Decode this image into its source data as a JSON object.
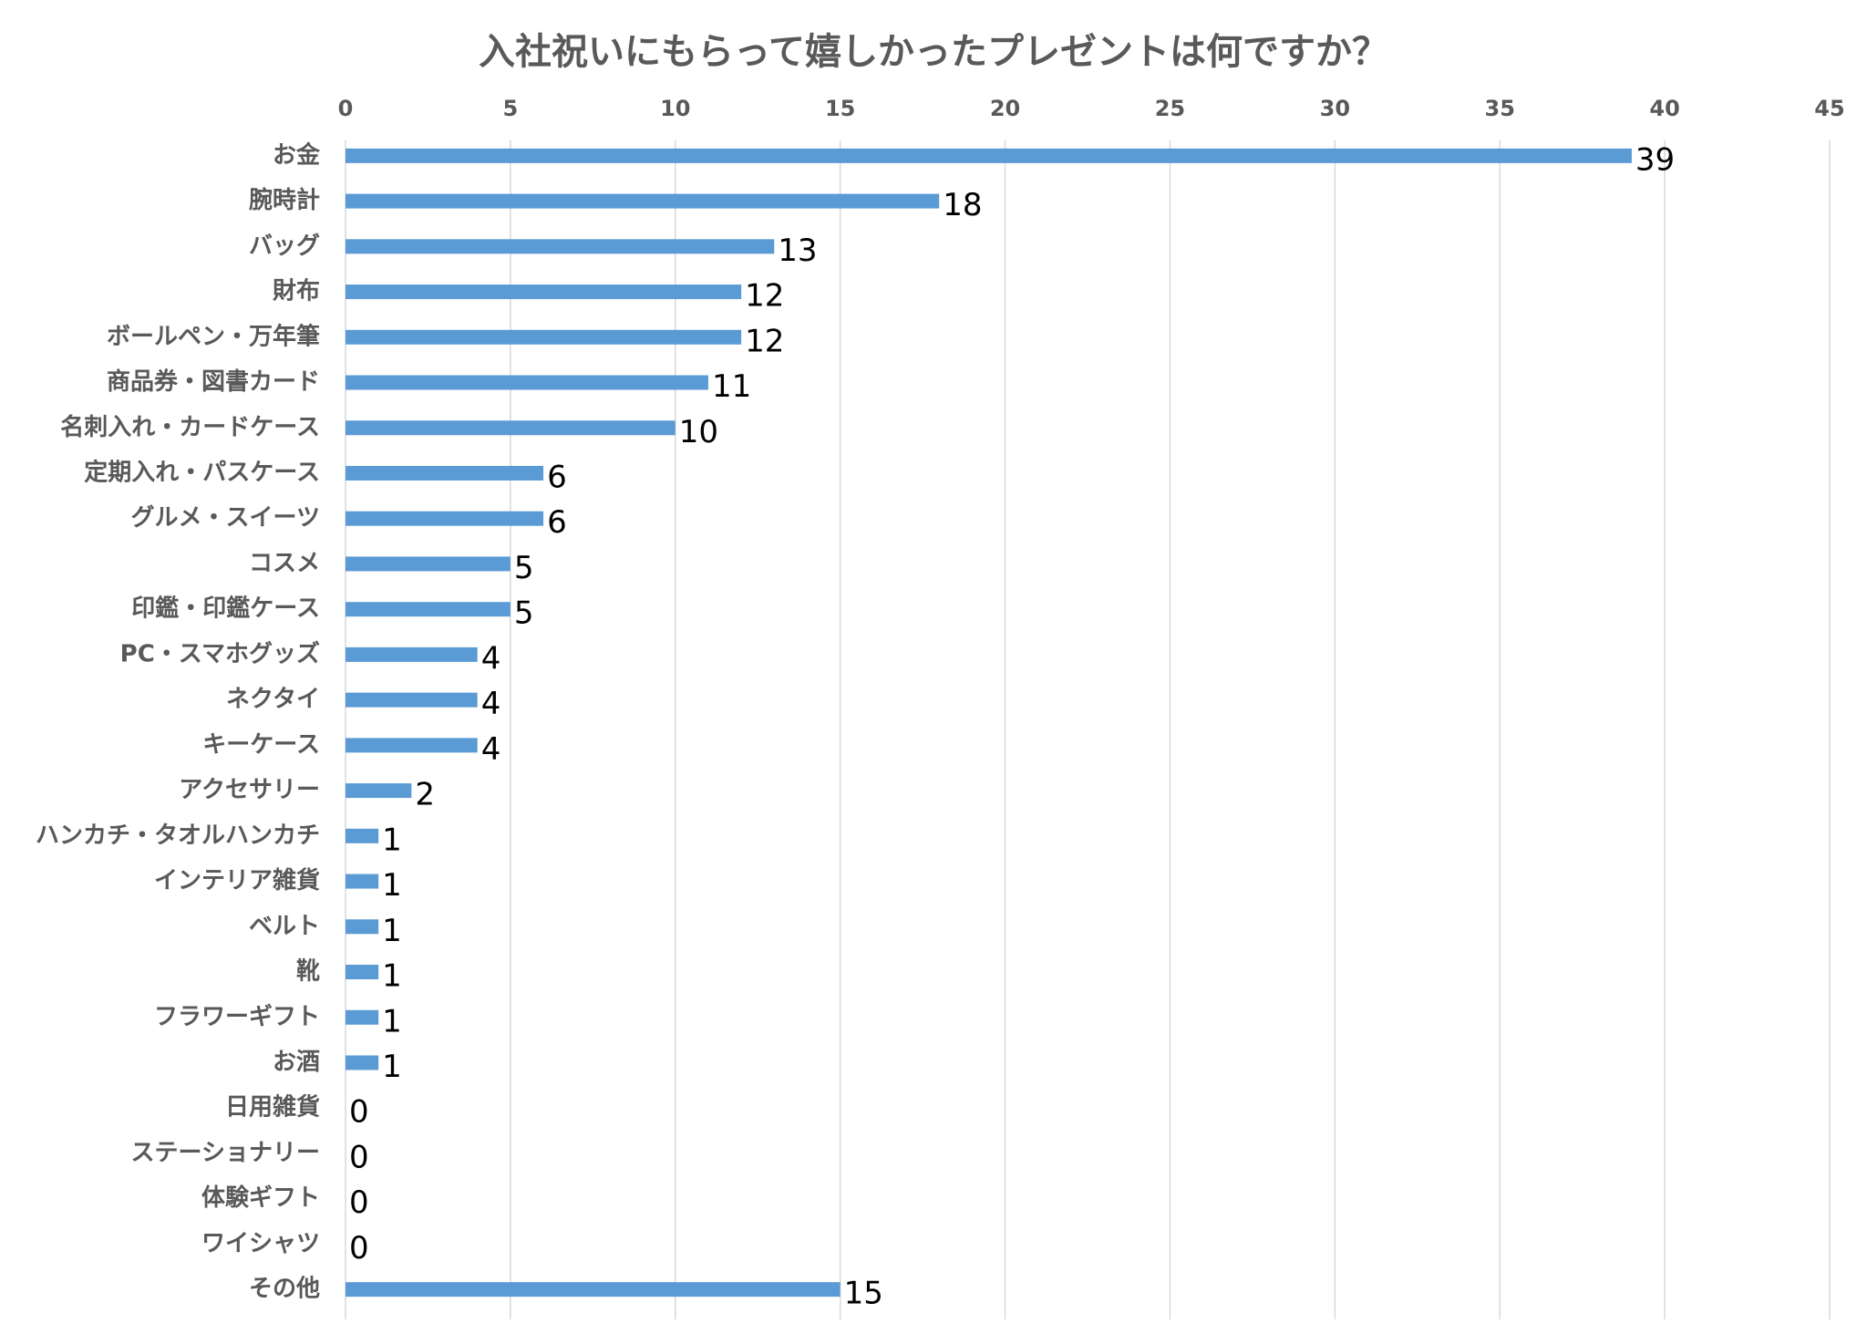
{
  "chart_data": {
    "type": "bar",
    "orientation": "horizontal",
    "title": "入社祝いにもらって嬉しかったプレゼントは何ですか？",
    "categories": [
      "お金",
      "腕時計",
      "バッグ",
      "財布",
      "ボールペン・万年筆",
      "商品券・図書カード",
      "名刺入れ・カードケース",
      "定期入れ・パスケース",
      "グルメ・スイーツ",
      "コスメ",
      "印鑑・印鑑ケース",
      "PC・スマホグッズ",
      "ネクタイ",
      "キーケース",
      "アクセサリー",
      "ハンカチ・タオルハンカチ",
      "インテリア雑貨",
      "ベルト",
      "靴",
      "フラワーギフト",
      "お酒",
      "日用雑貨",
      "ステーショナリー",
      "体験ギフト",
      "ワイシャツ",
      "その他"
    ],
    "values": [
      39,
      18,
      13,
      12,
      12,
      11,
      10,
      6,
      6,
      5,
      5,
      4,
      4,
      4,
      2,
      1,
      1,
      1,
      1,
      1,
      1,
      0,
      0,
      0,
      0,
      15
    ],
    "color": "#5b9bd5",
    "xlim": [
      0,
      45
    ],
    "xticks": [
      0,
      5,
      10,
      15,
      20,
      25,
      30,
      35,
      40,
      45
    ],
    "grid": true
  }
}
